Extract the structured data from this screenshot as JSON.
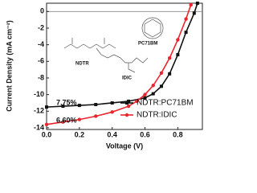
{
  "chart_data": {
    "type": "line",
    "xlabel": "Voltage (V)",
    "ylabel": "Current Density (mA cm⁻²)",
    "xlim": [
      0,
      0.95
    ],
    "ylim": [
      -14.2,
      1
    ],
    "xticks": [
      {
        "value": 0,
        "label": "0.0"
      },
      0.2,
      0.4,
      0.6,
      0.8
    ],
    "yticks": [
      0,
      -2,
      -4,
      -6,
      -8,
      -10,
      -12,
      -14
    ],
    "series": [
      {
        "name": "NDTR:PC71BM",
        "color": "#111111",
        "x": [
          0,
          0.1,
          0.2,
          0.3,
          0.4,
          0.5,
          0.6,
          0.65,
          0.7,
          0.75,
          0.8,
          0.85,
          0.9,
          0.92
        ],
        "values": [
          -11.5,
          -11.4,
          -11.3,
          -11.2,
          -11.0,
          -10.8,
          -10.4,
          -9.9,
          -9.0,
          -7.5,
          -5.2,
          -2.5,
          -0.2,
          1
        ]
      },
      {
        "name": "NDTR:IDIC",
        "color": "#e8262c",
        "x": [
          0,
          0.1,
          0.2,
          0.3,
          0.4,
          0.5,
          0.55,
          0.6,
          0.65,
          0.7,
          0.75,
          0.8,
          0.85,
          0.88
        ],
        "values": [
          -13.6,
          -13.3,
          -13.0,
          -12.6,
          -12.1,
          -11.4,
          -10.8,
          -10.0,
          -8.9,
          -7.4,
          -5.6,
          -3.4,
          -0.9,
          0.8
        ]
      }
    ],
    "annotations": [
      {
        "text": "7.75%",
        "color": "#111111"
      },
      {
        "text": "6.60%",
        "color": "#e8262c"
      },
      {
        "text": "NDTR",
        "color": "#111111"
      },
      {
        "text": "IDIC",
        "color": "#111111"
      },
      {
        "text": "PC71BM",
        "color": "#111111"
      }
    ],
    "legend": "lower right"
  }
}
